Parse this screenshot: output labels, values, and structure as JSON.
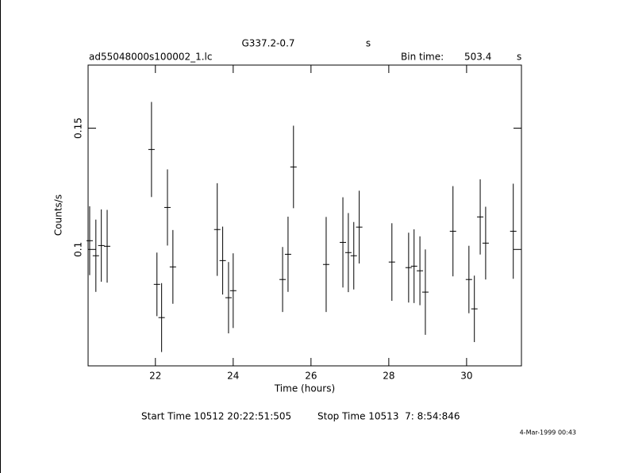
{
  "chart_data": {
    "type": "scatter",
    "title": "G337.2-0.7",
    "title_unit": "s",
    "file_name": "ad55048000s100002_1.lc",
    "bin_time_label": "Bin time:",
    "bin_time": 503.4,
    "bin_time_unit": "s",
    "x_label": "Time (hours)",
    "y_label": "Counts/s",
    "start_time": "Start Time 10512 20:22:51:505",
    "stop_time": "Stop Time 10513  7: 8:54:846",
    "date_stamp": "4-Mar-1999 00:43",
    "xlim": [
      20.27,
      31.41
    ],
    "ylim": [
      0.052,
      0.176
    ],
    "xticks": [
      22,
      24,
      26,
      28,
      30
    ],
    "yticks": [
      0.1,
      0.15
    ],
    "color": "#000000",
    "x": [
      20.31,
      20.47,
      20.61,
      20.76,
      21.9,
      22.04,
      22.16,
      22.31,
      22.45,
      23.59,
      23.73,
      23.88,
      24.0,
      25.27,
      25.41,
      25.55,
      26.39,
      26.82,
      26.96,
      27.1,
      27.24,
      28.08,
      28.51,
      28.65,
      28.8,
      28.94,
      29.65,
      30.06,
      30.2,
      30.35,
      30.49,
      31.2
    ],
    "values": [
      0.1036,
      0.0974,
      0.1016,
      0.1013,
      0.1412,
      0.0856,
      0.0719,
      0.1173,
      0.0928,
      0.1082,
      0.0954,
      0.0801,
      0.083,
      0.0876,
      0.098,
      0.134,
      0.0938,
      0.1029,
      0.0987,
      0.0974,
      0.1092,
      0.0948,
      0.0925,
      0.0931,
      0.0912,
      0.0824,
      0.1075,
      0.0876,
      0.0755,
      0.1134,
      0.1026,
      0.1075
    ],
    "errors": [
      0.0142,
      0.0149,
      0.0149,
      0.015,
      0.0196,
      0.0131,
      0.0142,
      0.0157,
      0.0152,
      0.0191,
      0.014,
      0.0147,
      0.0154,
      0.0134,
      0.0155,
      0.017,
      0.0196,
      0.0186,
      0.0163,
      0.0139,
      0.015,
      0.016,
      0.0144,
      0.0152,
      0.0142,
      0.0176,
      0.0186,
      0.0139,
      0.0137,
      0.0155,
      0.015,
      0.0196
    ]
  }
}
